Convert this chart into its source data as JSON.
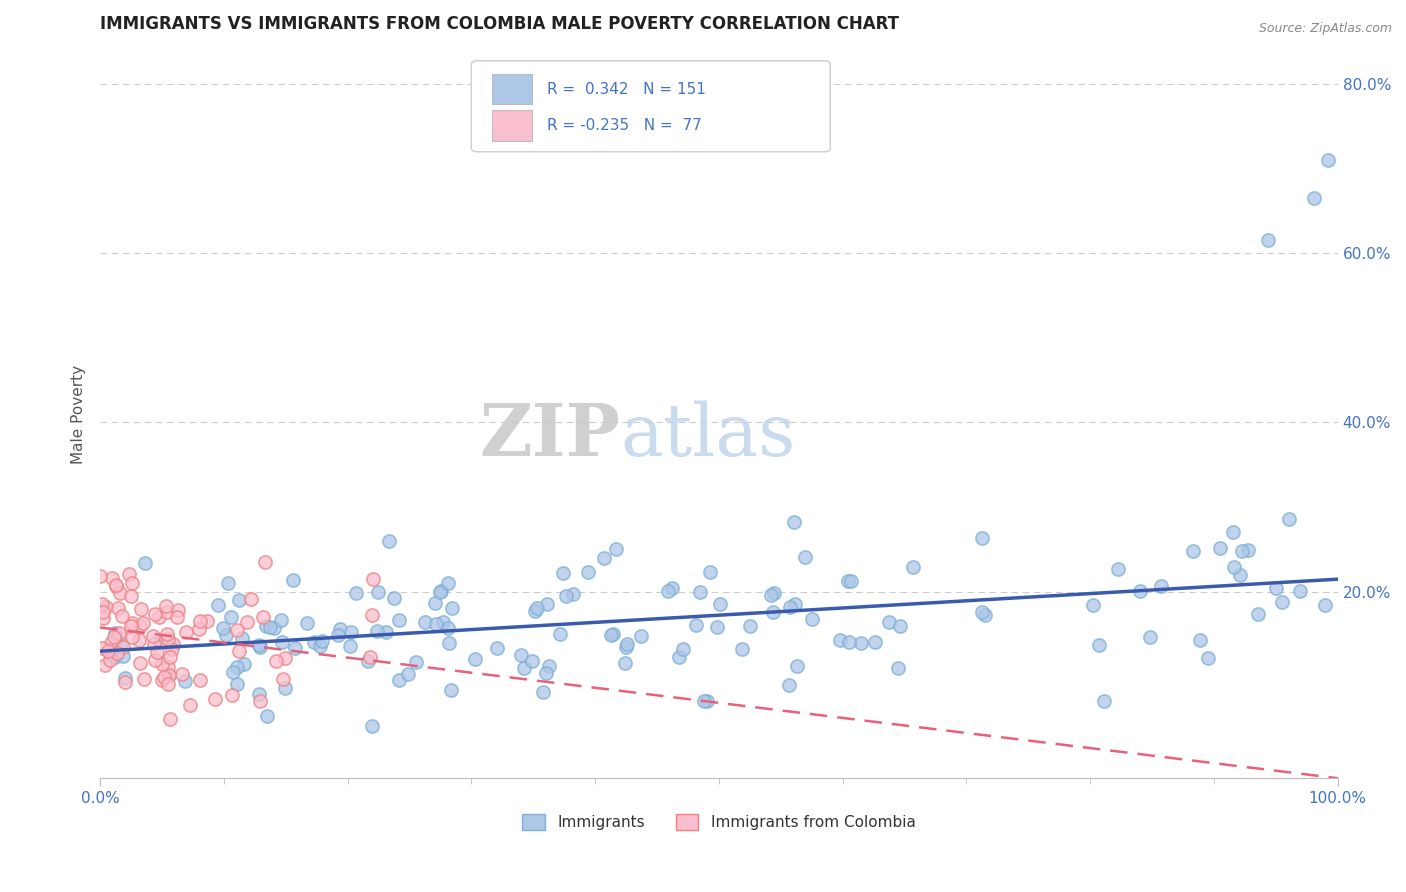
{
  "title": "IMMIGRANTS VS IMMIGRANTS FROM COLOMBIA MALE POVERTY CORRELATION CHART",
  "source": "Source: ZipAtlas.com",
  "ylabel": "Male Poverty",
  "xlim": [
    0,
    1
  ],
  "ylim": [
    -0.02,
    0.84
  ],
  "x_ticks": [
    0,
    1
  ],
  "x_tick_labels": [
    "0.0%",
    "100.0%"
  ],
  "y_ticks": [
    0.2,
    0.4,
    0.6,
    0.8
  ],
  "y_tick_labels": [
    "20.0%",
    "40.0%",
    "60.0%",
    "80.0%"
  ],
  "blue_R": 0.342,
  "blue_N": 151,
  "pink_R": -0.235,
  "pink_N": 77,
  "blue_face_color": "#AEC6E8",
  "blue_edge_color": "#7BAFD4",
  "pink_face_color": "#F9BFCE",
  "pink_edge_color": "#F08080",
  "blue_line_color": "#3A5BAD",
  "pink_line_color": "#E8607A",
  "legend_label_1": "Immigrants",
  "legend_label_2": "Immigrants from Colombia",
  "background_color": "#FFFFFF",
  "grid_color": "#CCCCCC",
  "title_color": "#222222",
  "axis_label_color": "#555555",
  "tick_label_color": "#4472C4",
  "source_color": "#888888",
  "blue_trend_x0": 0.0,
  "blue_trend_y0": 0.13,
  "blue_trend_x1": 1.0,
  "blue_trend_y1": 0.215,
  "pink_trend_x0": 0.0,
  "pink_trend_y0": 0.158,
  "pink_trend_x1": 1.0,
  "pink_trend_y1": -0.02
}
